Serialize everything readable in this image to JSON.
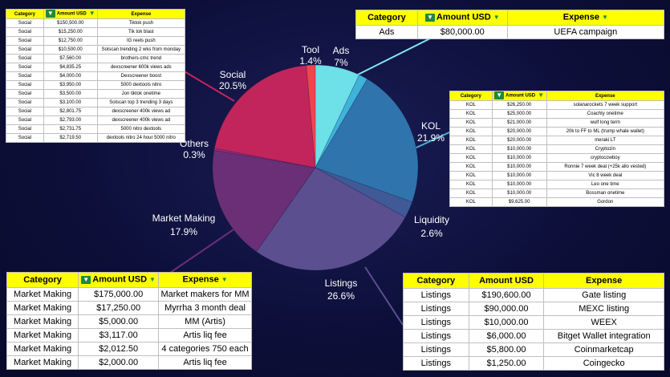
{
  "chart_data": {
    "type": "pie",
    "slices": [
      {
        "label": "Ads",
        "pct": "7%",
        "value": 7.0,
        "color": "#6ee0e8"
      },
      {
        "label": "",
        "pct": "",
        "value": 1.4,
        "color": "#3fb3da"
      },
      {
        "label": "KOL",
        "pct": "21.9%",
        "value": 21.9,
        "color": "#2f74ad"
      },
      {
        "label": "Liquidity",
        "pct": "2.6%",
        "value": 2.6,
        "color": "#3f5a96"
      },
      {
        "label": "Listings",
        "pct": "26.6%",
        "value": 26.6,
        "color": "#5b4f8f"
      },
      {
        "label": "Market Making",
        "pct": "17.9%",
        "value": 17.9,
        "color": "#6a2f77"
      },
      {
        "label": "Others",
        "pct": "0.3%",
        "value": 0.3,
        "color": "#9a2f7c"
      },
      {
        "label": "Social",
        "pct": "20.5%",
        "value": 20.5,
        "color": "#c2255c"
      },
      {
        "label": "Tool",
        "pct": "1.4%",
        "value": 1.4,
        "color": "#f0454d"
      }
    ]
  },
  "headers": {
    "category": "Category",
    "amount": "Amount USD",
    "expense": "Expense"
  },
  "tables": {
    "social": [
      [
        "Social",
        "$150,500.00",
        "Tiktok push"
      ],
      [
        "Social",
        "$15,250.00",
        "Tik tok blast"
      ],
      [
        "Social",
        "$12,750.00",
        "IG reels push"
      ],
      [
        "Social",
        "$10,500.00",
        "Solscan trending 2 wks from monday"
      ],
      [
        "Social",
        "$7,560.00",
        "brothers-cmc trend"
      ],
      [
        "Social",
        "$4,835.25",
        "dexscreener 600k views ads"
      ],
      [
        "Social",
        "$4,000.00",
        "Dexscreener boost"
      ],
      [
        "Social",
        "$3,950.00",
        "5000 dextools nitro"
      ],
      [
        "Social",
        "$3,500.00",
        "Jon tiktok onetime"
      ],
      [
        "Social",
        "$3,100.00",
        "Solscan top 3 trending 3 days"
      ],
      [
        "Social",
        "$2,801.75",
        "dexscreener 400k views ad"
      ],
      [
        "Social",
        "$2,793.00",
        "dexscreener 400k views ad"
      ],
      [
        "Social",
        "$2,731.75",
        "5000 nitro dextools"
      ],
      [
        "Social",
        "$2,719.50",
        "dextools nitro 24 hour 5000 nitro"
      ]
    ],
    "ads": [
      [
        "Ads",
        "$80,000.00",
        "UEFA campaign"
      ]
    ],
    "kol": [
      [
        "KOL",
        "$26,250.00",
        "solanarockets 7 week support"
      ],
      [
        "KOL",
        "$25,000.00",
        "Coachty onetime"
      ],
      [
        "KOL",
        "$21,000.00",
        "wulf long term"
      ],
      [
        "KOL",
        "$20,000.00",
        "20k to FF to ML (trump whale wallet)"
      ],
      [
        "KOL",
        "$20,000.00",
        "meraki LT"
      ],
      [
        "KOL",
        "$10,000.00",
        "Cryptozin"
      ],
      [
        "KOL",
        "$10,000.00",
        "cryptocowboy"
      ],
      [
        "KOL",
        "$10,000.00",
        "Ronnie 7 week deal (+25k allo vested)"
      ],
      [
        "KOL",
        "$10,000.00",
        "Vic 8 week deal"
      ],
      [
        "KOL",
        "$10,000.00",
        "Leo one time"
      ],
      [
        "KOL",
        "$10,000.00",
        "Bossman onetime"
      ],
      [
        "KOL",
        "$9,625.00",
        "Gordon"
      ]
    ],
    "market_making": [
      [
        "Market Making",
        "$175,000.00",
        "Market makers for MM"
      ],
      [
        "Market Making",
        "$17,250.00",
        "Myrrha 3 month deal"
      ],
      [
        "Market Making",
        "$5,000.00",
        "MM (Artis)"
      ],
      [
        "Market Making",
        "$3,117.00",
        "Artis liq fee"
      ],
      [
        "Market Making",
        "$2,012.50",
        "4 categories 750 each"
      ],
      [
        "Market Making",
        "$2,000.00",
        "Artis liq fee"
      ]
    ],
    "listings": [
      [
        "Listings",
        "$190,600.00",
        "Gate listing"
      ],
      [
        "Listings",
        "$90,000.00",
        "MEXC listing"
      ],
      [
        "Listings",
        "$10,000.00",
        "WEEX"
      ],
      [
        "Listings",
        "$6,000.00",
        "Bitget Wallet integration"
      ],
      [
        "Listings",
        "$5,800.00",
        "Coinmarketcap"
      ],
      [
        "Listings",
        "$1,250.00",
        "Coingecko"
      ]
    ]
  }
}
